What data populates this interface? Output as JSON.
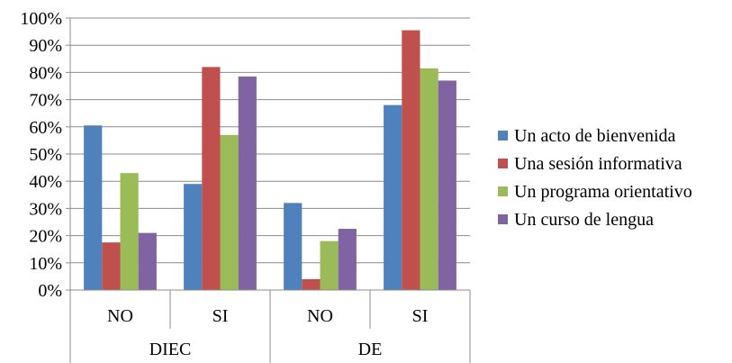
{
  "chart_data": {
    "type": "bar",
    "groups": [
      {
        "label": "DIEC",
        "categories": [
          "NO",
          "SI"
        ]
      },
      {
        "label": "DE",
        "categories": [
          "NO",
          "SI"
        ]
      }
    ],
    "categories": [
      "NO",
      "SI",
      "NO",
      "SI"
    ],
    "series": [
      {
        "name": "Un acto de bienvenida",
        "color": "#4F81BD",
        "values": [
          60.5,
          39,
          32,
          68
        ]
      },
      {
        "name": "Una sesión informativa",
        "color": "#C0504D",
        "values": [
          17.5,
          82,
          4,
          95.5
        ]
      },
      {
        "name": "Un programa orientativo",
        "color": "#9BBB59",
        "values": [
          43,
          57,
          18,
          81.5
        ]
      },
      {
        "name": "Un curso de lengua",
        "color": "#8064A2",
        "values": [
          21,
          78.5,
          22.5,
          77
        ]
      }
    ],
    "ylim": [
      0,
      100
    ],
    "ytick_labels": [
      "0%",
      "10%",
      "20%",
      "30%",
      "40%",
      "50%",
      "60%",
      "70%",
      "80%",
      "90%",
      "100%"
    ],
    "grid": true,
    "legend_position": "right",
    "title": "",
    "xlabel": "",
    "ylabel": ""
  }
}
